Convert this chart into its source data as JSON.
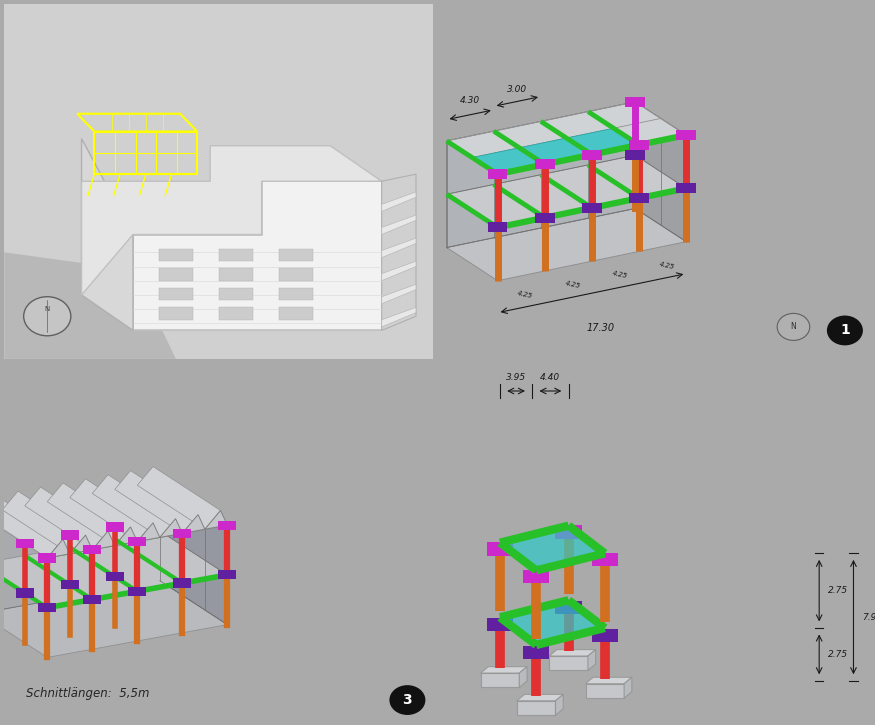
{
  "bg_color": "#aaaaaa",
  "colors": {
    "red": "#e03030",
    "orange": "#d07020",
    "green": "#28c028",
    "magenta": "#cc28cc",
    "cyan": "#28c8c8",
    "purple": "#6020a0",
    "white": "#f0f0f0",
    "yellow": "#ffff00",
    "gray_frame": "#808080",
    "dark": "#303030"
  },
  "panel3_text": "Schnittlängen:  5,5m",
  "circle_number_bg": "#111111",
  "divider_color": "#ffffff"
}
